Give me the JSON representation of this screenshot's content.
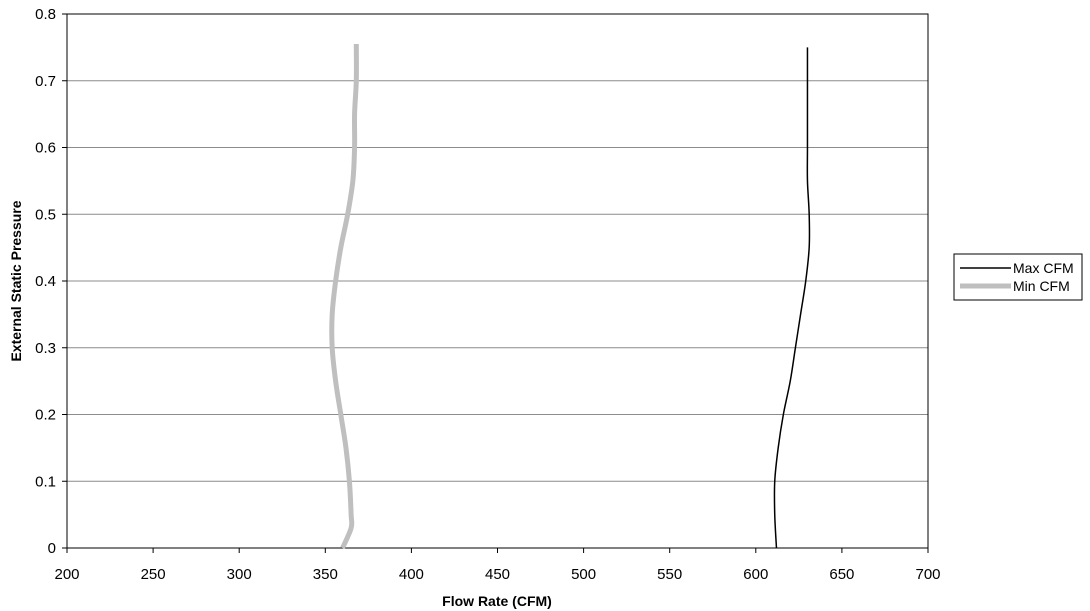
{
  "chart_data": {
    "type": "line",
    "xlabel": "Flow Rate (CFM)",
    "ylabel": "External Static Pressure",
    "xlim": [
      200,
      700
    ],
    "ylim": [
      0,
      0.8
    ],
    "x_ticks": [
      "200",
      "250",
      "300",
      "350",
      "400",
      "450",
      "500",
      "550",
      "600",
      "650",
      "700"
    ],
    "y_ticks": [
      "0",
      "0.1",
      "0.2",
      "0.3",
      "0.4",
      "0.5",
      "0.6",
      "0.7",
      "0.8"
    ],
    "grid": "horizontal",
    "legend_position": "right",
    "series": [
      {
        "name": "Max CFM",
        "color": "#000000",
        "points": [
          [
            612,
            0
          ],
          [
            611,
            0.05
          ],
          [
            611,
            0.1
          ],
          [
            613,
            0.15
          ],
          [
            616,
            0.2
          ],
          [
            620,
            0.25
          ],
          [
            623,
            0.3
          ],
          [
            626,
            0.35
          ],
          [
            629,
            0.4
          ],
          [
            631,
            0.45
          ],
          [
            631,
            0.5
          ],
          [
            630,
            0.55
          ],
          [
            630,
            0.6
          ],
          [
            630,
            0.65
          ],
          [
            630,
            0.7
          ],
          [
            630,
            0.75
          ]
        ]
      },
      {
        "name": "Min CFM",
        "color": "#bfbfbf",
        "points": [
          [
            360,
            0
          ],
          [
            365,
            0.03
          ],
          [
            365,
            0.05
          ],
          [
            364,
            0.1
          ],
          [
            362,
            0.15
          ],
          [
            359,
            0.2
          ],
          [
            356,
            0.25
          ],
          [
            354,
            0.3
          ],
          [
            354,
            0.35
          ],
          [
            356,
            0.4
          ],
          [
            359,
            0.45
          ],
          [
            363,
            0.5
          ],
          [
            366,
            0.55
          ],
          [
            367,
            0.6
          ],
          [
            367,
            0.65
          ],
          [
            368,
            0.7
          ],
          [
            368,
            0.755
          ]
        ]
      }
    ]
  }
}
